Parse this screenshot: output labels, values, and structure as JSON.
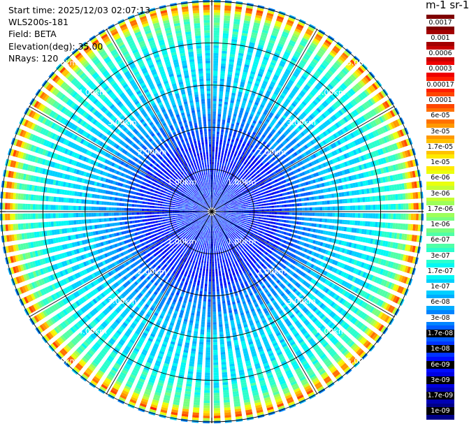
{
  "header": {
    "start_time": "Start time: 2025/12/03 02:07:13",
    "instrument": "WLS200s-181",
    "field": "Field: BETA",
    "elevation": "Elevation(deg): 35.00",
    "nrays": "NRays: 120"
  },
  "colorbar": {
    "units": "m-1 sr-1",
    "labels": [
      "0.0017",
      "0.001",
      "0.0006",
      "0.0003",
      "0.00017",
      "0.0001",
      "6e-05",
      "3e-05",
      "1.7e-05",
      "1e-05",
      "6e-06",
      "3e-06",
      "1.7e-06",
      "1e-06",
      "6e-07",
      "3e-07",
      "1.7e-07",
      "1e-07",
      "6e-08",
      "3e-08",
      "1.7e-08",
      "1e-08",
      "6e-09",
      "3e-09",
      "1.7e-09",
      "1e-09"
    ],
    "colors": [
      "#7f0000",
      "#a30000",
      "#c80000",
      "#ee0000",
      "#ff1e00",
      "#ff4700",
      "#ff7000",
      "#ff9800",
      "#ffc200",
      "#ffea00",
      "#eaff0d",
      "#c4ff33",
      "#9dff5a",
      "#77ff80",
      "#50ffa7",
      "#2affcd",
      "#03f8f4",
      "#00d0ff",
      "#00acff",
      "#0084ff",
      "#005cff",
      "#0034ff",
      "#000cff",
      "#0000e1",
      "#0000b3",
      "#000088"
    ]
  },
  "chart_data": {
    "type": "heatmap",
    "projection": "polar-ppi",
    "nrays": 120,
    "elevation_deg": 35.0,
    "range_max_km": 5.0,
    "range_rings_km": [
      1,
      2,
      3,
      4,
      5
    ],
    "ring_labels": [
      "1.00km",
      "2.00km",
      "3.00km",
      "4.00km",
      "5.00km"
    ],
    "ring_label_bearings_deg": [
      -45,
      45,
      135,
      225
    ],
    "spokes_deg": [
      0,
      30,
      60,
      90,
      120,
      150,
      180,
      210,
      240,
      270,
      300,
      330
    ],
    "colorscale": "jet-log",
    "value_range": [
      1e-09,
      0.0017
    ],
    "range_profile": [
      {
        "range_km": 0.3,
        "value": 1e-08
      },
      {
        "range_km": 1.5,
        "value": 6e-09
      },
      {
        "range_km": 2.2,
        "value": 3e-08
      },
      {
        "range_km": 3.0,
        "value": 1e-07
      },
      {
        "range_km": 4.0,
        "value": 1.7e-07
      },
      {
        "range_km": 4.6,
        "value": 6e-07
      },
      {
        "range_km": 4.8,
        "value": 3e-05
      },
      {
        "range_km": 4.9,
        "value": 0.0001
      },
      {
        "range_km": 4.97,
        "value": 1e-07
      },
      {
        "range_km": 5.0,
        "value": 3e-08
      }
    ]
  }
}
